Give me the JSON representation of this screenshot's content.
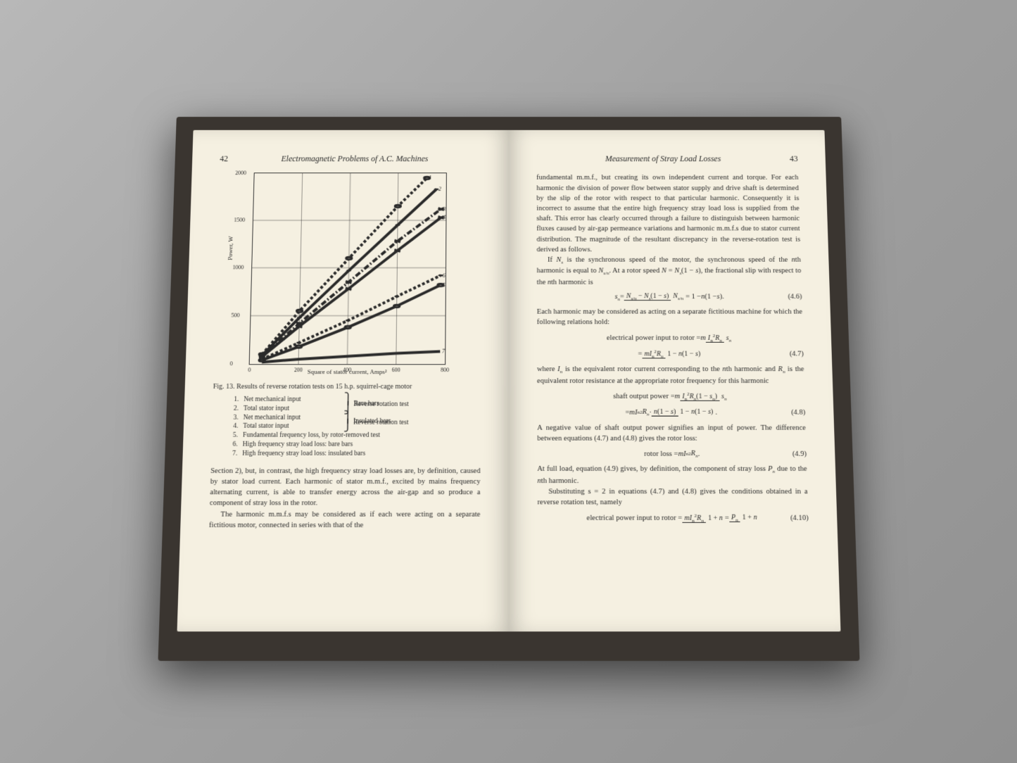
{
  "left_page": {
    "page_number": "42",
    "header_title": "Electromagnetic Problems of A.C. Machines",
    "chart": {
      "type": "line",
      "ylabel": "Power,    W",
      "xlabel": "Square of stator current,      Amps²",
      "ylim": [
        0,
        2000
      ],
      "xlim": [
        0,
        800
      ],
      "yticks": [
        0,
        500,
        1000,
        1500,
        2000
      ],
      "xticks": [
        0,
        200,
        400,
        600,
        800
      ],
      "grid_color": "#333333",
      "background_color": "#f5f0e1",
      "series": [
        {
          "label": "1",
          "color": "#2a2a2a",
          "dash": "4,3",
          "marker": "circle",
          "data": [
            [
              50,
              100
            ],
            [
              200,
              550
            ],
            [
              400,
              1100
            ],
            [
              600,
              1650
            ],
            [
              720,
              1950
            ]
          ]
        },
        {
          "label": "2",
          "color": "#2a2a2a",
          "dash": "none",
          "marker": "dot",
          "data": [
            [
              50,
              90
            ],
            [
              200,
              480
            ],
            [
              400,
              970
            ],
            [
              600,
              1450
            ],
            [
              760,
              1830
            ]
          ]
        },
        {
          "label": "3",
          "color": "#2a2a2a",
          "dash": "8,3,2,3",
          "marker": "x",
          "data": [
            [
              50,
              80
            ],
            [
              200,
              420
            ],
            [
              400,
              850
            ],
            [
              600,
              1280
            ],
            [
              780,
              1620
            ]
          ]
        },
        {
          "label": "4",
          "color": "#2a2a2a",
          "dash": "none",
          "marker": "x",
          "data": [
            [
              50,
              75
            ],
            [
              200,
              390
            ],
            [
              400,
              780
            ],
            [
              600,
              1180
            ],
            [
              780,
              1530
            ]
          ]
        },
        {
          "label": "5",
          "color": "#2a2a2a",
          "dash": "none",
          "marker": "circle",
          "data": [
            [
              50,
              40
            ],
            [
              200,
              180
            ],
            [
              400,
              380
            ],
            [
              600,
              600
            ],
            [
              780,
              820
            ]
          ]
        },
        {
          "label": "6",
          "color": "#2a2a2a",
          "dash": "4,3",
          "marker": "dot",
          "data": [
            [
              50,
              50
            ],
            [
              200,
              220
            ],
            [
              400,
              450
            ],
            [
              600,
              700
            ],
            [
              780,
              920
            ]
          ]
        },
        {
          "label": "7",
          "color": "#2a2a2a",
          "dash": "none",
          "marker": "none",
          "data": [
            [
              50,
              20
            ],
            [
              200,
              50
            ],
            [
              400,
              80
            ],
            [
              600,
              110
            ],
            [
              780,
              130
            ]
          ]
        }
      ]
    },
    "fig_caption": "Fig. 13. Results of reverse rotation tests on 15 h.p. squirrel-cage motor",
    "fig_items": [
      {
        "n": "1.",
        "label": "Net mechanical input",
        "group": "Reverse rotation test"
      },
      {
        "n": "2.",
        "label": "Total stator input",
        "group": "Bare bars"
      },
      {
        "n": "3.",
        "label": "Net mechanical input",
        "group": "Reverse rotation test"
      },
      {
        "n": "4.",
        "label": "Total stator input",
        "group": "Insulated bars"
      },
      {
        "n": "5.",
        "label": "Fundamental frequency loss, by rotor-removed test",
        "group": ""
      },
      {
        "n": "6.",
        "label": "High frequency stray load loss: bare bars",
        "group": ""
      },
      {
        "n": "7.",
        "label": "High frequency stray load loss: insulated bars",
        "group": ""
      }
    ],
    "para1": "Section 2), but, in contrast, the high frequency stray load losses are, by definition, caused by stator load current. Each harmonic of stator m.m.f., excited by mains frequency alternating current, is able to transfer energy across the air-gap and so produce a component of stray loss in the rotor.",
    "para2": "The harmonic m.m.f.s may be considered as if each were acting on a separate fictitious motor, connected in series with that of the"
  },
  "right_page": {
    "page_number": "43",
    "header_title": "Measurement of Stray Load Losses",
    "para1": "fundamental m.m.f., but creating its own independent current and torque. For each harmonic the division of power flow between stator supply and drive shaft is determined by the slip of the rotor with respect to that particular harmonic. Consequently it is incorrect to assume that the entire high frequency stray load loss is supplied from the shaft. This error has clearly occurred through a failure to distinguish between harmonic fluxes caused by air-gap permeance variations and harmonic m.m.f.s due to stator current distribution. The magnitude of the resultant discrepancy in the reverse-rotation test is derived as follows.",
    "para2_a": "If ",
    "para2_b": " is the synchronous speed of the motor, the synchronous speed of the ",
    "para2_c": "th harmonic is equal to ",
    "para2_d": ". At a rotor speed ",
    "para2_e": ", the fractional slip with respect to the ",
    "para2_f": "th harmonic is",
    "eq46_num": "(4.6)",
    "para3": "Each harmonic may be considered as acting on a separate fictitious machine for which the following relations hold:",
    "eq47_label": "electrical power input to rotor",
    "eq47_num": "(4.7)",
    "para4_a": "where ",
    "para4_b": " is the equivalent rotor current corresponding to the ",
    "para4_c": "th harmonic and ",
    "para4_d": " is the equivalent rotor resistance at the appropriate rotor frequency for this harmonic",
    "eq48_label": "shaft output power",
    "eq48_num": "(4.8)",
    "para5": "A negative value of shaft output power signifies an input of power. The difference between equations (4.7) and (4.8) gives the rotor loss:",
    "eq49_label": "rotor loss",
    "eq49_num": "(4.9)",
    "para6_a": "At full load, equation (4.9) gives, by definition, the component of stray loss ",
    "para6_b": " due to the ",
    "para6_c": "th harmonic.",
    "para7": "Substituting s = 2 in equations (4.7) and (4.8) gives the conditions obtained in a reverse rotation test, namely",
    "eq410_label": "electrical power input to rotor",
    "eq410_num": "(4.10)"
  }
}
